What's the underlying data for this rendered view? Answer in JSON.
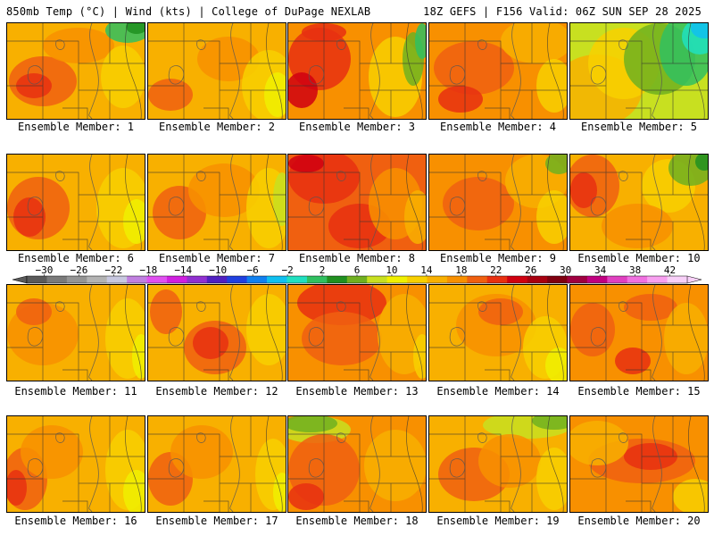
{
  "header": {
    "title_left": "850mb Temp (°C) | Wind (kts) | College of DuPage NEXLAB",
    "title_right": "18Z GEFS | F156 Valid: 06Z SUN SEP 28 2025"
  },
  "member_label_prefix": "Ensemble Member: ",
  "members": [
    1,
    2,
    3,
    4,
    5,
    6,
    7,
    8,
    9,
    10,
    11,
    12,
    13,
    14,
    15,
    16,
    17,
    18,
    19,
    20
  ],
  "legend": {
    "ticks": [
      "-30",
      "-26",
      "-22",
      "-18",
      "-14",
      "-10",
      "-6",
      "-2",
      "2",
      "6",
      "10",
      "14",
      "18",
      "22",
      "26",
      "30",
      "34",
      "38",
      "42"
    ],
    "colors": [
      "#5a5a5a",
      "#7a7a7a",
      "#959595",
      "#b3b3b3",
      "#c8c8e0",
      "#c080e0",
      "#e050f0",
      "#d020e0",
      "#9030d0",
      "#5020c0",
      "#2040e0",
      "#1080f0",
      "#10c0f0",
      "#20e0c0",
      "#30c060",
      "#209020",
      "#70b020",
      "#c8e020",
      "#f0f000",
      "#f8d000",
      "#f8b000",
      "#f89000",
      "#f06010",
      "#e83010",
      "#d00010",
      "#a80010",
      "#800010",
      "#a00040",
      "#c00080",
      "#e040c0",
      "#f070e0",
      "#f8a0f0",
      "#f8d0f8"
    ],
    "min": -32,
    "max": 44,
    "step": 2
  },
  "member_fields": [
    {
      "base": "#f8b000",
      "blobs": [
        [
          "#f06010",
          40,
          65,
          38,
          28
        ],
        [
          "#e83010",
          30,
          70,
          20,
          14
        ],
        [
          "#f89000",
          80,
          25,
          40,
          20
        ],
        [
          "#f8d000",
          130,
          60,
          25,
          35
        ],
        [
          "#30c060",
          135,
          8,
          25,
          14
        ],
        [
          "#209020",
          145,
          4,
          12,
          8
        ]
      ]
    },
    {
      "base": "#f8b000",
      "blobs": [
        [
          "#f89000",
          90,
          40,
          35,
          25
        ],
        [
          "#f8d000",
          135,
          70,
          30,
          40
        ],
        [
          "#f06010",
          25,
          80,
          25,
          18
        ],
        [
          "#f0f000",
          145,
          80,
          15,
          25
        ]
      ]
    },
    {
      "base": "#f89000",
      "blobs": [
        [
          "#e83010",
          35,
          40,
          35,
          35
        ],
        [
          "#d00010",
          15,
          75,
          18,
          20
        ],
        [
          "#e83010",
          40,
          10,
          25,
          10
        ],
        [
          "#f8d000",
          120,
          60,
          30,
          45
        ],
        [
          "#70b020",
          140,
          40,
          12,
          30
        ],
        [
          "#30c060",
          150,
          20,
          8,
          20
        ]
      ]
    },
    {
      "base": "#f89000",
      "blobs": [
        [
          "#f06010",
          50,
          50,
          45,
          30
        ],
        [
          "#e83010",
          35,
          85,
          25,
          15
        ],
        [
          "#f8b000",
          120,
          20,
          40,
          25
        ],
        [
          "#f8d000",
          140,
          70,
          20,
          30
        ]
      ]
    },
    {
      "base": "#c8e020",
      "blobs": [
        [
          "#f8b000",
          30,
          75,
          50,
          40
        ],
        [
          "#f8d000",
          60,
          45,
          40,
          40
        ],
        [
          "#70b020",
          100,
          40,
          40,
          40
        ],
        [
          "#30c060",
          130,
          30,
          30,
          40
        ],
        [
          "#20e0c0",
          145,
          15,
          20,
          20
        ],
        [
          "#10c0f0",
          150,
          5,
          15,
          12
        ]
      ]
    },
    {
      "base": "#f8b000",
      "blobs": [
        [
          "#f06010",
          35,
          60,
          35,
          35
        ],
        [
          "#e83010",
          25,
          70,
          18,
          22
        ],
        [
          "#f8d000",
          130,
          60,
          30,
          45
        ],
        [
          "#f0f000",
          145,
          75,
          15,
          25
        ]
      ]
    },
    {
      "base": "#f8b000",
      "blobs": [
        [
          "#f06010",
          35,
          65,
          30,
          30
        ],
        [
          "#f89000",
          85,
          40,
          40,
          30
        ],
        [
          "#f8d000",
          135,
          60,
          25,
          45
        ],
        [
          "#c8e020",
          150,
          50,
          10,
          30
        ]
      ]
    },
    {
      "base": "#f06010",
      "blobs": [
        [
          "#e83010",
          40,
          25,
          40,
          30
        ],
        [
          "#d00010",
          20,
          10,
          20,
          10
        ],
        [
          "#e83010",
          80,
          80,
          35,
          25
        ],
        [
          "#f89000",
          120,
          55,
          30,
          40
        ],
        [
          "#f8b000",
          145,
          70,
          15,
          30
        ]
      ]
    },
    {
      "base": "#f89000",
      "blobs": [
        [
          "#f06010",
          55,
          55,
          40,
          30
        ],
        [
          "#f8b000",
          120,
          30,
          35,
          30
        ],
        [
          "#70b020",
          145,
          10,
          15,
          12
        ],
        [
          "#f8d000",
          140,
          70,
          20,
          30
        ]
      ]
    },
    {
      "base": "#f8b000",
      "blobs": [
        [
          "#f06010",
          25,
          35,
          30,
          35
        ],
        [
          "#e83010",
          15,
          40,
          15,
          20
        ],
        [
          "#f8d000",
          110,
          35,
          30,
          30
        ],
        [
          "#70b020",
          135,
          15,
          25,
          20
        ],
        [
          "#209020",
          150,
          8,
          10,
          10
        ],
        [
          "#f89000",
          75,
          80,
          40,
          25
        ]
      ]
    },
    {
      "base": "#f8b000",
      "blobs": [
        [
          "#f89000",
          40,
          55,
          40,
          35
        ],
        [
          "#f06010",
          30,
          30,
          20,
          15
        ],
        [
          "#f8d000",
          135,
          60,
          25,
          45
        ],
        [
          "#f0f000",
          150,
          80,
          10,
          25
        ]
      ]
    },
    {
      "base": "#f8b000",
      "blobs": [
        [
          "#f06010",
          75,
          70,
          35,
          30
        ],
        [
          "#e83010",
          70,
          65,
          20,
          18
        ],
        [
          "#f06010",
          20,
          30,
          18,
          25
        ],
        [
          "#f8d000",
          135,
          50,
          25,
          40
        ]
      ]
    },
    {
      "base": "#f89000",
      "blobs": [
        [
          "#e83010",
          60,
          20,
          50,
          25
        ],
        [
          "#f06010",
          60,
          60,
          45,
          30
        ],
        [
          "#f8b000",
          130,
          55,
          30,
          45
        ],
        [
          "#f8d000",
          150,
          80,
          10,
          25
        ]
      ]
    },
    {
      "base": "#f8b000",
      "blobs": [
        [
          "#f89000",
          75,
          45,
          45,
          35
        ],
        [
          "#f06010",
          80,
          30,
          25,
          15
        ],
        [
          "#f8d000",
          130,
          70,
          25,
          35
        ],
        [
          "#f0f000",
          145,
          90,
          15,
          20
        ]
      ]
    },
    {
      "base": "#f89000",
      "blobs": [
        [
          "#f06010",
          25,
          50,
          25,
          30
        ],
        [
          "#e83010",
          70,
          85,
          20,
          15
        ],
        [
          "#f06010",
          90,
          25,
          30,
          15
        ],
        [
          "#f8b000",
          130,
          60,
          25,
          40
        ]
      ]
    },
    {
      "base": "#f8b000",
      "blobs": [
        [
          "#f06010",
          20,
          70,
          25,
          35
        ],
        [
          "#e83010",
          10,
          80,
          12,
          20
        ],
        [
          "#f89000",
          50,
          40,
          35,
          30
        ],
        [
          "#f8d000",
          135,
          60,
          25,
          45
        ],
        [
          "#f0f000",
          145,
          85,
          15,
          25
        ]
      ]
    },
    {
      "base": "#f8b000",
      "blobs": [
        [
          "#f06010",
          25,
          70,
          25,
          30
        ],
        [
          "#f89000",
          60,
          40,
          35,
          30
        ],
        [
          "#f8d000",
          140,
          65,
          20,
          40
        ],
        [
          "#f0f000",
          150,
          85,
          10,
          22
        ]
      ]
    },
    {
      "base": "#f89000",
      "blobs": [
        [
          "#c8e020",
          30,
          15,
          40,
          15
        ],
        [
          "#70b020",
          25,
          8,
          30,
          10
        ],
        [
          "#f06010",
          40,
          60,
          40,
          40
        ],
        [
          "#e83010",
          20,
          90,
          20,
          15
        ],
        [
          "#f8b000",
          120,
          55,
          35,
          40
        ]
      ]
    },
    {
      "base": "#f8b000",
      "blobs": [
        [
          "#c8e020",
          110,
          10,
          50,
          15
        ],
        [
          "#70b020",
          140,
          5,
          25,
          10
        ],
        [
          "#f06010",
          50,
          65,
          40,
          30
        ],
        [
          "#f89000",
          90,
          50,
          35,
          30
        ],
        [
          "#f8d000",
          140,
          70,
          20,
          35
        ]
      ]
    },
    {
      "base": "#f89000",
      "blobs": [
        [
          "#f06010",
          80,
          50,
          60,
          25
        ],
        [
          "#e83010",
          90,
          45,
          30,
          15
        ],
        [
          "#f8b000",
          30,
          30,
          35,
          25
        ],
        [
          "#f8d000",
          140,
          90,
          25,
          20
        ]
      ]
    }
  ]
}
